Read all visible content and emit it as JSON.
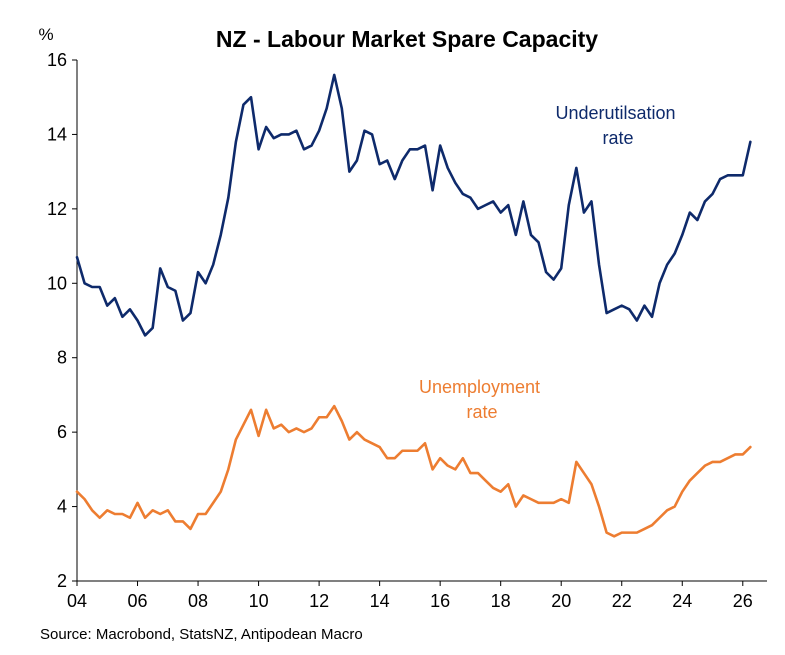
{
  "chart_data": {
    "type": "line",
    "title": "NZ - Labour Market Spare Capacity",
    "ylabel": "%",
    "source": "Source: Macrobond, StatsNZ, Antipodean Macro",
    "ylim": [
      2,
      16
    ],
    "yticks": [
      "2",
      "4",
      "6",
      "8",
      "10",
      "12",
      "14",
      "16"
    ],
    "xlim": [
      2004.0,
      2026.8
    ],
    "xticks": [
      "04",
      "06",
      "08",
      "10",
      "12",
      "14",
      "16",
      "18",
      "20",
      "22",
      "24",
      "26"
    ],
    "grid": false,
    "x": [
      2004.0,
      2004.25,
      2004.5,
      2004.75,
      2005.0,
      2005.25,
      2005.5,
      2005.75,
      2006.0,
      2006.25,
      2006.5,
      2006.75,
      2007.0,
      2007.25,
      2007.5,
      2007.75,
      2008.0,
      2008.25,
      2008.5,
      2008.75,
      2009.0,
      2009.25,
      2009.5,
      2009.75,
      2010.0,
      2010.25,
      2010.5,
      2010.75,
      2011.0,
      2011.25,
      2011.5,
      2011.75,
      2012.0,
      2012.25,
      2012.5,
      2012.75,
      2013.0,
      2013.25,
      2013.5,
      2013.75,
      2014.0,
      2014.25,
      2014.5,
      2014.75,
      2015.0,
      2015.25,
      2015.5,
      2015.75,
      2016.0,
      2016.25,
      2016.5,
      2016.75,
      2017.0,
      2017.25,
      2017.5,
      2017.75,
      2018.0,
      2018.25,
      2018.5,
      2018.75,
      2019.0,
      2019.25,
      2019.5,
      2019.75,
      2020.0,
      2020.25,
      2020.5,
      2020.75,
      2021.0,
      2021.25,
      2021.5,
      2021.75,
      2022.0,
      2022.25,
      2022.5,
      2022.75,
      2023.0,
      2023.25,
      2023.5,
      2023.75,
      2024.0,
      2024.25,
      2024.5,
      2024.75,
      2025.0,
      2025.25,
      2025.5,
      2025.75,
      2026.0,
      2026.25
    ],
    "series": [
      {
        "name": "Underutilsation rate",
        "label_lines": [
          "Underutilsation",
          "rate"
        ],
        "color": "#0E2A6B",
        "values": [
          10.7,
          10.0,
          9.9,
          9.9,
          9.4,
          9.6,
          9.1,
          9.3,
          9.0,
          8.6,
          8.8,
          10.4,
          9.9,
          9.8,
          9.0,
          9.2,
          10.3,
          10.0,
          10.5,
          11.3,
          12.3,
          13.8,
          14.8,
          15.0,
          13.6,
          14.2,
          13.9,
          14.0,
          14.0,
          14.1,
          13.6,
          13.7,
          14.1,
          14.7,
          15.6,
          14.7,
          13.0,
          13.3,
          14.1,
          14.0,
          13.2,
          13.3,
          12.8,
          13.3,
          13.6,
          13.6,
          13.7,
          12.5,
          13.7,
          13.1,
          12.7,
          12.4,
          12.3,
          12.0,
          12.1,
          12.2,
          11.9,
          12.1,
          11.3,
          12.2,
          11.3,
          11.1,
          10.3,
          10.1,
          10.4,
          12.1,
          13.1,
          11.9,
          12.2,
          10.5,
          9.2,
          9.3,
          9.4,
          9.3,
          9.0,
          9.4,
          9.1,
          10.0,
          10.5,
          10.8,
          11.3,
          11.9,
          11.7,
          12.2,
          12.4,
          12.8,
          12.9,
          12.9,
          12.9,
          13.8
        ]
      },
      {
        "name": "Unemployment rate",
        "label_lines": [
          "Unemployment",
          "rate"
        ],
        "color": "#ED7D31",
        "values": [
          4.4,
          4.2,
          3.9,
          3.7,
          3.9,
          3.8,
          3.8,
          3.7,
          4.1,
          3.7,
          3.9,
          3.8,
          3.9,
          3.6,
          3.6,
          3.4,
          3.8,
          3.8,
          4.1,
          4.4,
          5.0,
          5.8,
          6.2,
          6.6,
          5.9,
          6.6,
          6.1,
          6.2,
          6.0,
          6.1,
          6.0,
          6.1,
          6.4,
          6.4,
          6.7,
          6.3,
          5.8,
          6.0,
          5.8,
          5.7,
          5.6,
          5.3,
          5.3,
          5.5,
          5.5,
          5.5,
          5.7,
          5.0,
          5.3,
          5.1,
          5.0,
          5.3,
          4.9,
          4.9,
          4.7,
          4.5,
          4.4,
          4.6,
          4.0,
          4.3,
          4.2,
          4.1,
          4.1,
          4.1,
          4.2,
          4.1,
          5.2,
          4.9,
          4.6,
          4.0,
          3.3,
          3.2,
          3.3,
          3.3,
          3.3,
          3.4,
          3.5,
          3.7,
          3.9,
          4.0,
          4.4,
          4.7,
          4.9,
          5.1,
          5.2,
          5.2,
          5.3,
          5.4,
          5.4,
          5.6
        ]
      }
    ]
  }
}
